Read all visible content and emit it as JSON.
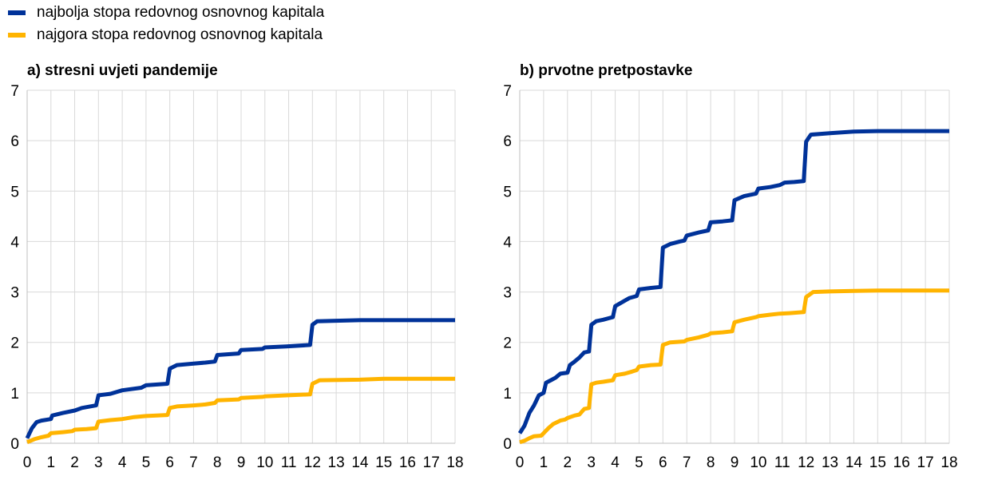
{
  "legend": [
    {
      "label": "najbolja stopa redovnog osnovnog kapitala",
      "color": "#003299"
    },
    {
      "label": "najgora stopa redovnog osnovnog kapitala",
      "color": "#FFB400"
    }
  ],
  "chart_data": [
    {
      "type": "line",
      "title": "a) stresni uvjeti pandemije",
      "xlabel": "",
      "ylabel": "",
      "xlim": [
        0,
        18
      ],
      "ylim": [
        0,
        7
      ],
      "x_ticks": [
        0,
        1,
        2,
        3,
        4,
        5,
        6,
        7,
        8,
        9,
        10,
        11,
        12,
        13,
        14,
        15,
        16,
        17,
        18
      ],
      "y_ticks": [
        0,
        1,
        2,
        3,
        4,
        5,
        6,
        7
      ],
      "grid": true,
      "series": [
        {
          "name": "najbolja stopa redovnog osnovnog kapitala",
          "color": "#003299",
          "points": [
            [
              0,
              0.1
            ],
            [
              0.2,
              0.3
            ],
            [
              0.4,
              0.42
            ],
            [
              0.6,
              0.45
            ],
            [
              1.0,
              0.48
            ],
            [
              1.05,
              0.55
            ],
            [
              1.5,
              0.6
            ],
            [
              2.0,
              0.65
            ],
            [
              2.3,
              0.7
            ],
            [
              2.9,
              0.75
            ],
            [
              3.0,
              0.95
            ],
            [
              3.5,
              0.98
            ],
            [
              4.0,
              1.05
            ],
            [
              4.8,
              1.1
            ],
            [
              5.0,
              1.15
            ],
            [
              5.9,
              1.18
            ],
            [
              6.0,
              1.48
            ],
            [
              6.3,
              1.55
            ],
            [
              7.0,
              1.58
            ],
            [
              7.5,
              1.6
            ],
            [
              7.9,
              1.62
            ],
            [
              8.0,
              1.75
            ],
            [
              8.9,
              1.78
            ],
            [
              9.0,
              1.85
            ],
            [
              9.9,
              1.87
            ],
            [
              10.0,
              1.9
            ],
            [
              10.9,
              1.92
            ],
            [
              11.9,
              1.95
            ],
            [
              12.0,
              2.35
            ],
            [
              12.2,
              2.42
            ],
            [
              13.0,
              2.43
            ],
            [
              14.0,
              2.44
            ],
            [
              18.0,
              2.44
            ]
          ]
        },
        {
          "name": "najgora stopa redovnog osnovnog kapitala",
          "color": "#FFB400",
          "points": [
            [
              0,
              0.02
            ],
            [
              0.3,
              0.08
            ],
            [
              0.6,
              0.12
            ],
            [
              0.9,
              0.15
            ],
            [
              1.0,
              0.2
            ],
            [
              1.5,
              0.22
            ],
            [
              1.9,
              0.24
            ],
            [
              2.0,
              0.27
            ],
            [
              2.5,
              0.28
            ],
            [
              2.9,
              0.3
            ],
            [
              3.0,
              0.43
            ],
            [
              3.5,
              0.46
            ],
            [
              4.0,
              0.48
            ],
            [
              4.5,
              0.52
            ],
            [
              5.0,
              0.54
            ],
            [
              5.9,
              0.56
            ],
            [
              6.0,
              0.7
            ],
            [
              6.3,
              0.73
            ],
            [
              7.0,
              0.75
            ],
            [
              7.5,
              0.77
            ],
            [
              7.9,
              0.8
            ],
            [
              8.0,
              0.85
            ],
            [
              8.9,
              0.87
            ],
            [
              9.0,
              0.9
            ],
            [
              9.9,
              0.92
            ],
            [
              10.0,
              0.93
            ],
            [
              10.9,
              0.95
            ],
            [
              11.9,
              0.97
            ],
            [
              12.0,
              1.18
            ],
            [
              12.3,
              1.25
            ],
            [
              14.0,
              1.26
            ],
            [
              15.0,
              1.28
            ],
            [
              18.0,
              1.28
            ]
          ]
        }
      ]
    },
    {
      "type": "line",
      "title": "b) prvotne pretpostavke",
      "xlabel": "",
      "ylabel": "",
      "xlim": [
        0,
        18
      ],
      "ylim": [
        0,
        7
      ],
      "x_ticks": [
        0,
        1,
        2,
        3,
        4,
        5,
        6,
        7,
        8,
        9,
        10,
        11,
        12,
        13,
        14,
        15,
        16,
        17,
        18
      ],
      "y_ticks": [
        0,
        1,
        2,
        3,
        4,
        5,
        6,
        7
      ],
      "grid": true,
      "series": [
        {
          "name": "najbolja stopa redovnog osnovnog kapitala",
          "color": "#003299",
          "points": [
            [
              0,
              0.2
            ],
            [
              0.2,
              0.35
            ],
            [
              0.4,
              0.6
            ],
            [
              0.6,
              0.75
            ],
            [
              0.8,
              0.95
            ],
            [
              1.0,
              1.0
            ],
            [
              1.1,
              1.2
            ],
            [
              1.3,
              1.25
            ],
            [
              1.5,
              1.3
            ],
            [
              1.7,
              1.38
            ],
            [
              2.0,
              1.4
            ],
            [
              2.1,
              1.55
            ],
            [
              2.3,
              1.62
            ],
            [
              2.5,
              1.7
            ],
            [
              2.7,
              1.8
            ],
            [
              2.9,
              1.82
            ],
            [
              3.0,
              2.35
            ],
            [
              3.2,
              2.42
            ],
            [
              3.5,
              2.45
            ],
            [
              3.9,
              2.5
            ],
            [
              4.0,
              2.72
            ],
            [
              4.3,
              2.8
            ],
            [
              4.6,
              2.88
            ],
            [
              4.9,
              2.92
            ],
            [
              5.0,
              3.05
            ],
            [
              5.5,
              3.08
            ],
            [
              5.9,
              3.1
            ],
            [
              6.0,
              3.88
            ],
            [
              6.3,
              3.95
            ],
            [
              6.7,
              4.0
            ],
            [
              6.9,
              4.02
            ],
            [
              7.0,
              4.12
            ],
            [
              7.5,
              4.18
            ],
            [
              7.9,
              4.22
            ],
            [
              8.0,
              4.38
            ],
            [
              8.5,
              4.4
            ],
            [
              8.9,
              4.42
            ],
            [
              9.0,
              4.82
            ],
            [
              9.4,
              4.9
            ],
            [
              9.9,
              4.95
            ],
            [
              10.0,
              5.05
            ],
            [
              10.5,
              5.08
            ],
            [
              10.9,
              5.12
            ],
            [
              11.1,
              5.17
            ],
            [
              11.5,
              5.18
            ],
            [
              11.9,
              5.2
            ],
            [
              12.0,
              5.98
            ],
            [
              12.2,
              6.12
            ],
            [
              13.0,
              6.15
            ],
            [
              14.0,
              6.18
            ],
            [
              15.0,
              6.19
            ],
            [
              18.0,
              6.19
            ]
          ]
        },
        {
          "name": "najgora stopa redovnog osnovnog kapitala",
          "color": "#FFB400",
          "points": [
            [
              0,
              0.02
            ],
            [
              0.2,
              0.05
            ],
            [
              0.4,
              0.1
            ],
            [
              0.6,
              0.14
            ],
            [
              0.9,
              0.15
            ],
            [
              1.0,
              0.2
            ],
            [
              1.2,
              0.3
            ],
            [
              1.4,
              0.38
            ],
            [
              1.7,
              0.45
            ],
            [
              1.9,
              0.47
            ],
            [
              2.0,
              0.5
            ],
            [
              2.3,
              0.55
            ],
            [
              2.5,
              0.57
            ],
            [
              2.7,
              0.68
            ],
            [
              2.9,
              0.7
            ],
            [
              3.0,
              1.17
            ],
            [
              3.2,
              1.2
            ],
            [
              3.5,
              1.22
            ],
            [
              3.9,
              1.25
            ],
            [
              4.0,
              1.35
            ],
            [
              4.4,
              1.38
            ],
            [
              4.7,
              1.42
            ],
            [
              4.9,
              1.45
            ],
            [
              5.0,
              1.52
            ],
            [
              5.5,
              1.55
            ],
            [
              5.9,
              1.56
            ],
            [
              6.0,
              1.95
            ],
            [
              6.3,
              2.0
            ],
            [
              6.9,
              2.02
            ],
            [
              7.0,
              2.05
            ],
            [
              7.5,
              2.1
            ],
            [
              7.9,
              2.15
            ],
            [
              8.0,
              2.18
            ],
            [
              8.5,
              2.2
            ],
            [
              8.9,
              2.22
            ],
            [
              9.0,
              2.4
            ],
            [
              9.4,
              2.45
            ],
            [
              9.9,
              2.5
            ],
            [
              10.0,
              2.52
            ],
            [
              10.5,
              2.55
            ],
            [
              10.9,
              2.57
            ],
            [
              11.3,
              2.58
            ],
            [
              11.9,
              2.6
            ],
            [
              12.0,
              2.9
            ],
            [
              12.3,
              3.0
            ],
            [
              13.0,
              3.01
            ],
            [
              14.0,
              3.02
            ],
            [
              15.0,
              3.03
            ],
            [
              18.0,
              3.03
            ]
          ]
        }
      ]
    }
  ]
}
